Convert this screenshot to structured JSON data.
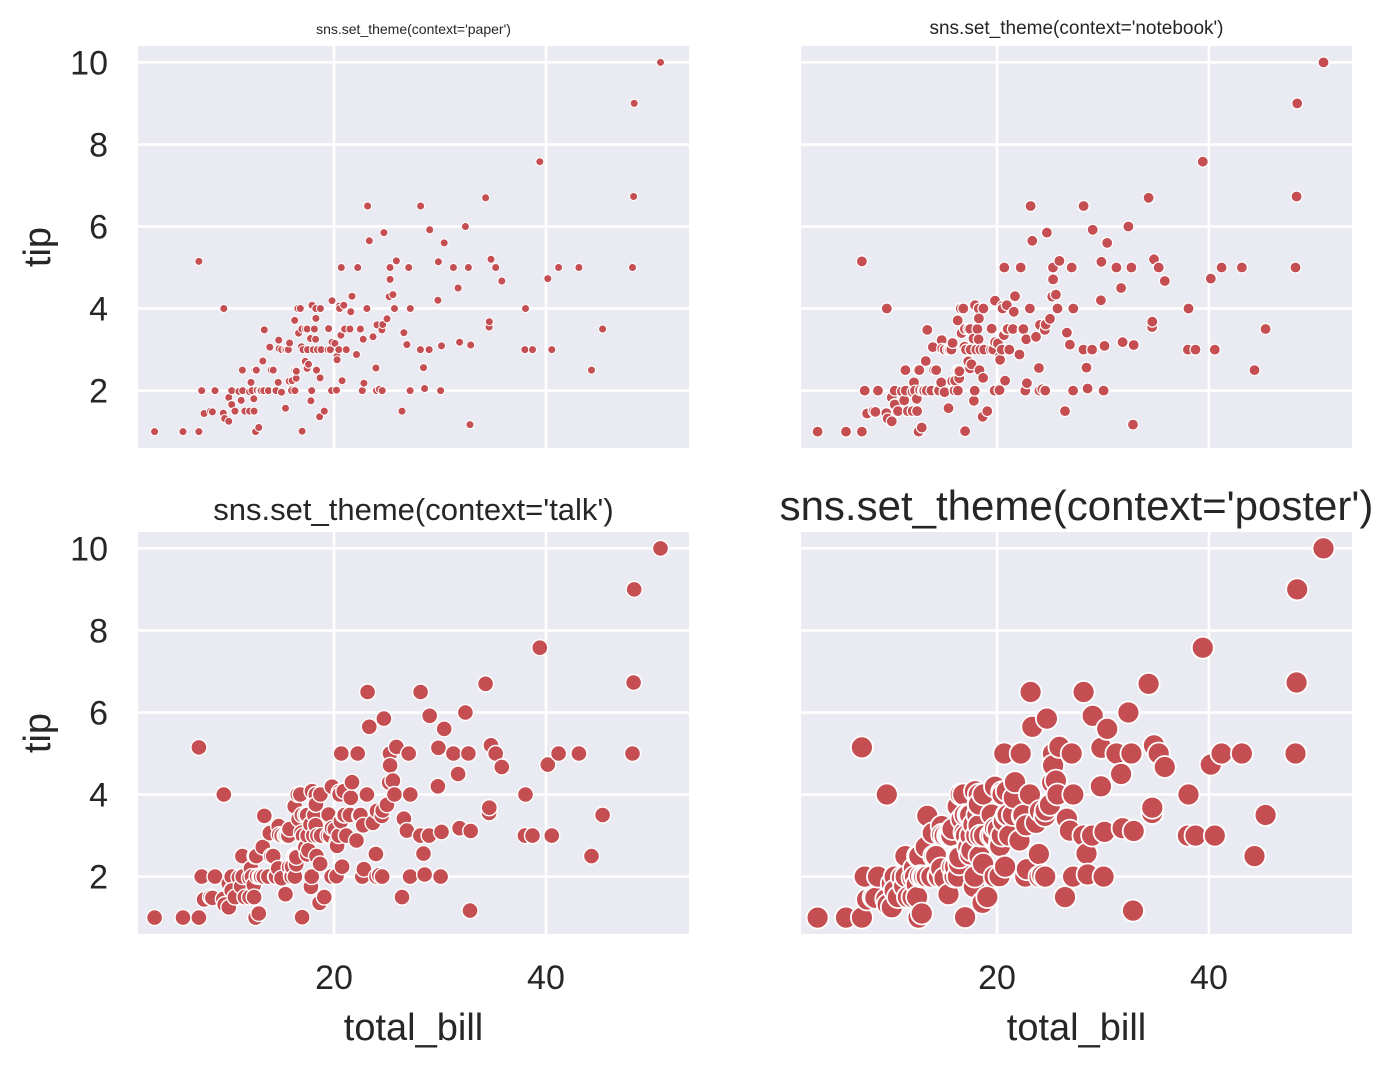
{
  "figure": {
    "background": "#ffffff",
    "panel_background": "#eaeaf2",
    "grid_color": "#ffffff",
    "point_color": "#c44e52",
    "text_color": "#262626"
  },
  "chart_data": [
    {
      "type": "scatter",
      "context": "paper",
      "title": "sns.set_theme(context='paper')",
      "xlabel": "",
      "ylabel": "tip",
      "xlim": [
        1.5,
        53.5
      ],
      "ylim": [
        0.6,
        10.4
      ],
      "xticks": [
        20,
        40
      ],
      "yticks": [
        2,
        4,
        6,
        8,
        10
      ],
      "xtick_labels": [],
      "ytick_labels": [
        "2",
        "4",
        "6",
        "8",
        "10"
      ],
      "grid": true,
      "marker_size": "small",
      "series": "tips_sample"
    },
    {
      "type": "scatter",
      "context": "notebook",
      "title": "sns.set_theme(context='notebook')",
      "xlabel": "",
      "ylabel": "",
      "xlim": [
        1.5,
        53.5
      ],
      "ylim": [
        0.6,
        10.4
      ],
      "xticks": [
        20,
        40
      ],
      "yticks": [
        2,
        4,
        6,
        8,
        10
      ],
      "xtick_labels": [],
      "ytick_labels": [],
      "grid": true,
      "marker_size": "medium",
      "series": "tips_sample"
    },
    {
      "type": "scatter",
      "context": "talk",
      "title": "sns.set_theme(context='talk')",
      "xlabel": "total_bill",
      "ylabel": "tip",
      "xlim": [
        1.5,
        53.5
      ],
      "ylim": [
        0.6,
        10.4
      ],
      "xticks": [
        20,
        40
      ],
      "yticks": [
        2,
        4,
        6,
        8,
        10
      ],
      "xtick_labels": [
        "20",
        "40"
      ],
      "ytick_labels": [
        "2",
        "4",
        "6",
        "8",
        "10"
      ],
      "grid": true,
      "marker_size": "large",
      "series": "tips_sample"
    },
    {
      "type": "scatter",
      "context": "poster",
      "title": "sns.set_theme(context='poster')",
      "xlabel": "total_bill",
      "ylabel": "",
      "xlim": [
        1.5,
        53.5
      ],
      "ylim": [
        0.6,
        10.4
      ],
      "xticks": [
        20,
        40
      ],
      "yticks": [
        2,
        4,
        6,
        8,
        10
      ],
      "xtick_labels": [
        "20",
        "40"
      ],
      "ytick_labels": [],
      "grid": true,
      "marker_size": "xlarge",
      "series": "tips_sample"
    }
  ],
  "series_data": {
    "tips_sample": [
      [
        3.07,
        1.0
      ],
      [
        5.75,
        1.0
      ],
      [
        7.25,
        1.0
      ],
      [
        7.25,
        5.15
      ],
      [
        7.51,
        2.0
      ],
      [
        7.74,
        1.44
      ],
      [
        8.35,
        1.5
      ],
      [
        8.52,
        1.48
      ],
      [
        8.77,
        2.0
      ],
      [
        9.55,
        1.45
      ],
      [
        9.6,
        4.0
      ],
      [
        9.68,
        1.32
      ],
      [
        10.07,
        1.25
      ],
      [
        10.07,
        1.83
      ],
      [
        10.33,
        1.67
      ],
      [
        10.34,
        2.0
      ],
      [
        10.34,
        1.66
      ],
      [
        10.65,
        1.5
      ],
      [
        11.02,
        1.98
      ],
      [
        11.24,
        1.76
      ],
      [
        11.35,
        2.5
      ],
      [
        11.38,
        2.0
      ],
      [
        11.59,
        1.5
      ],
      [
        12.02,
        1.97
      ],
      [
        12.03,
        1.5
      ],
      [
        12.16,
        2.2
      ],
      [
        12.26,
        2.0
      ],
      [
        12.43,
        1.8
      ],
      [
        12.46,
        1.5
      ],
      [
        12.54,
        2.5
      ],
      [
        12.6,
        1.0
      ],
      [
        12.66,
        2.5
      ],
      [
        12.74,
        2.01
      ],
      [
        12.9,
        1.1
      ],
      [
        13.0,
        2.0
      ],
      [
        13.03,
        2.0
      ],
      [
        13.13,
        2.0
      ],
      [
        13.28,
        2.72
      ],
      [
        13.37,
        2.0
      ],
      [
        13.42,
        3.48
      ],
      [
        13.81,
        2.0
      ],
      [
        13.94,
        3.06
      ],
      [
        14.07,
        2.5
      ],
      [
        14.26,
        2.5
      ],
      [
        14.48,
        2.0
      ],
      [
        14.52,
        2.0
      ],
      [
        14.73,
        2.2
      ],
      [
        14.78,
        3.23
      ],
      [
        14.83,
        3.02
      ],
      [
        15.04,
        1.96
      ],
      [
        15.06,
        3.0
      ],
      [
        15.38,
        3.0
      ],
      [
        15.42,
        1.57
      ],
      [
        15.53,
        3.0
      ],
      [
        15.69,
        3.0
      ],
      [
        15.77,
        2.23
      ],
      [
        15.81,
        3.16
      ],
      [
        15.98,
        2.03
      ],
      [
        16.0,
        2.0
      ],
      [
        16.04,
        2.24
      ],
      [
        16.27,
        2.5
      ],
      [
        16.29,
        3.71
      ],
      [
        16.31,
        2.0
      ],
      [
        16.4,
        2.5
      ],
      [
        16.43,
        2.3
      ],
      [
        16.45,
        2.47
      ],
      [
        16.58,
        4.0
      ],
      [
        16.66,
        3.4
      ],
      [
        16.82,
        4.0
      ],
      [
        16.93,
        3.07
      ],
      [
        16.97,
        3.5
      ],
      [
        16.99,
        1.01
      ],
      [
        17.07,
        3.0
      ],
      [
        17.26,
        2.74
      ],
      [
        17.29,
        2.71
      ],
      [
        17.31,
        3.5
      ],
      [
        17.46,
        2.54
      ],
      [
        17.47,
        3.5
      ],
      [
        17.51,
        3.0
      ],
      [
        17.59,
        2.64
      ],
      [
        17.78,
        3.27
      ],
      [
        17.82,
        1.75
      ],
      [
        17.89,
        2.0
      ],
      [
        17.92,
        4.08
      ],
      [
        18.04,
        3.0
      ],
      [
        18.15,
        3.5
      ],
      [
        18.24,
        3.76
      ],
      [
        18.26,
        3.25
      ],
      [
        18.28,
        4.0
      ],
      [
        18.29,
        3.76
      ],
      [
        18.35,
        2.5
      ],
      [
        18.43,
        3.0
      ],
      [
        18.64,
        1.36
      ],
      [
        18.69,
        2.31
      ],
      [
        18.71,
        4.0
      ],
      [
        18.78,
        3.0
      ],
      [
        19.08,
        1.5
      ],
      [
        19.44,
        3.0
      ],
      [
        19.49,
        3.51
      ],
      [
        19.65,
        3.0
      ],
      [
        19.77,
        2.0
      ],
      [
        19.81,
        4.19
      ],
      [
        19.82,
        3.18
      ],
      [
        20.08,
        3.15
      ],
      [
        20.23,
        2.01
      ],
      [
        20.27,
        2.83
      ],
      [
        20.29,
        2.75
      ],
      [
        20.45,
        3.0
      ],
      [
        20.49,
        4.06
      ],
      [
        20.53,
        4.0
      ],
      [
        20.65,
        3.35
      ],
      [
        20.69,
        5.0
      ],
      [
        20.76,
        2.24
      ],
      [
        20.9,
        3.5
      ],
      [
        20.92,
        4.08
      ],
      [
        21.01,
        3.5
      ],
      [
        21.16,
        3.0
      ],
      [
        21.5,
        3.5
      ],
      [
        21.58,
        3.92
      ],
      [
        21.7,
        4.3
      ],
      [
        22.12,
        2.88
      ],
      [
        22.23,
        5.0
      ],
      [
        22.42,
        3.48
      ],
      [
        22.49,
        3.5
      ],
      [
        22.67,
        2.0
      ],
      [
        22.75,
        3.25
      ],
      [
        22.82,
        2.18
      ],
      [
        23.1,
        4.0
      ],
      [
        23.17,
        6.5
      ],
      [
        23.33,
        5.65
      ],
      [
        23.68,
        3.31
      ],
      [
        23.95,
        2.55
      ],
      [
        24.01,
        2.0
      ],
      [
        24.06,
        3.6
      ],
      [
        24.27,
        2.03
      ],
      [
        24.52,
        3.48
      ],
      [
        24.55,
        2.0
      ],
      [
        24.59,
        3.61
      ],
      [
        24.71,
        5.85
      ],
      [
        25.0,
        3.75
      ],
      [
        25.21,
        4.29
      ],
      [
        25.28,
        5.0
      ],
      [
        25.29,
        4.71
      ],
      [
        25.56,
        4.34
      ],
      [
        25.71,
        4.0
      ],
      [
        25.89,
        5.16
      ],
      [
        26.41,
        1.5
      ],
      [
        26.59,
        3.41
      ],
      [
        26.88,
        3.12
      ],
      [
        27.05,
        5.0
      ],
      [
        27.18,
        2.0
      ],
      [
        27.2,
        4.0
      ],
      [
        28.15,
        3.0
      ],
      [
        28.17,
        6.5
      ],
      [
        28.44,
        2.56
      ],
      [
        28.55,
        2.05
      ],
      [
        28.97,
        3.0
      ],
      [
        29.03,
        5.92
      ],
      [
        29.8,
        4.2
      ],
      [
        29.85,
        5.14
      ],
      [
        30.06,
        2.0
      ],
      [
        30.14,
        3.09
      ],
      [
        30.4,
        5.6
      ],
      [
        31.27,
        5.0
      ],
      [
        31.71,
        4.5
      ],
      [
        31.85,
        3.18
      ],
      [
        32.4,
        6.0
      ],
      [
        32.68,
        5.0
      ],
      [
        32.83,
        1.17
      ],
      [
        32.9,
        3.11
      ],
      [
        34.3,
        6.7
      ],
      [
        34.63,
        3.55
      ],
      [
        34.65,
        3.68
      ],
      [
        34.81,
        5.2
      ],
      [
        35.26,
        5.0
      ],
      [
        35.83,
        4.67
      ],
      [
        38.01,
        3.0
      ],
      [
        38.07,
        4.0
      ],
      [
        38.73,
        3.0
      ],
      [
        39.42,
        7.58
      ],
      [
        40.17,
        4.73
      ],
      [
        40.55,
        3.0
      ],
      [
        41.19,
        5.0
      ],
      [
        43.11,
        5.0
      ],
      [
        44.3,
        2.5
      ],
      [
        45.35,
        3.5
      ],
      [
        48.17,
        5.0
      ],
      [
        48.27,
        6.73
      ],
      [
        48.33,
        9.0
      ],
      [
        50.81,
        10.0
      ]
    ]
  }
}
